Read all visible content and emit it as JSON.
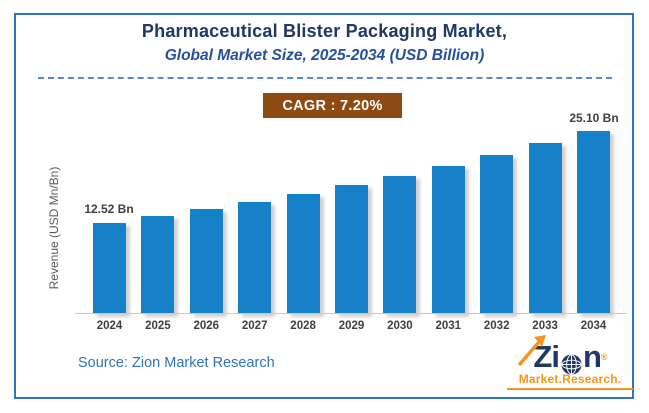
{
  "header": {
    "title": "Pharmaceutical Blister Packaging Market,",
    "subtitle": "Global Market Size, 2025-2034 (USD Billion)"
  },
  "cagr_badge": {
    "label": "CAGR : 7.20%",
    "bg_color": "#8E4A10",
    "text_color": "#FFFFFF"
  },
  "chart_data": {
    "type": "bar",
    "title": "Pharmaceutical Blister Packaging Market, Global Market Size, 2025-2034 (USD Billion)",
    "categories": [
      "2024",
      "2025",
      "2026",
      "2027",
      "2028",
      "2029",
      "2030",
      "2031",
      "2032",
      "2033",
      "2034"
    ],
    "values": [
      12.52,
      13.42,
      14.39,
      15.42,
      16.53,
      17.72,
      19.0,
      20.36,
      21.83,
      23.4,
      25.1
    ],
    "unit": "USD Billion",
    "xlabel": "",
    "ylabel": "Revenue (USD Mn/Bn)",
    "ylim": [
      0,
      26
    ],
    "grid": false,
    "legend": false,
    "bar_color": "#1680C8",
    "first_label": "12.52 Bn",
    "last_label": "25.10 Bn"
  },
  "footer": {
    "source": "Source: Zion Market Research",
    "logo": {
      "left_text": "Zi",
      "right_text": "n",
      "registered": "®",
      "tagline": "Market.Research.",
      "navy_color": "#1F3864",
      "orange_color": "#F7941D"
    }
  }
}
